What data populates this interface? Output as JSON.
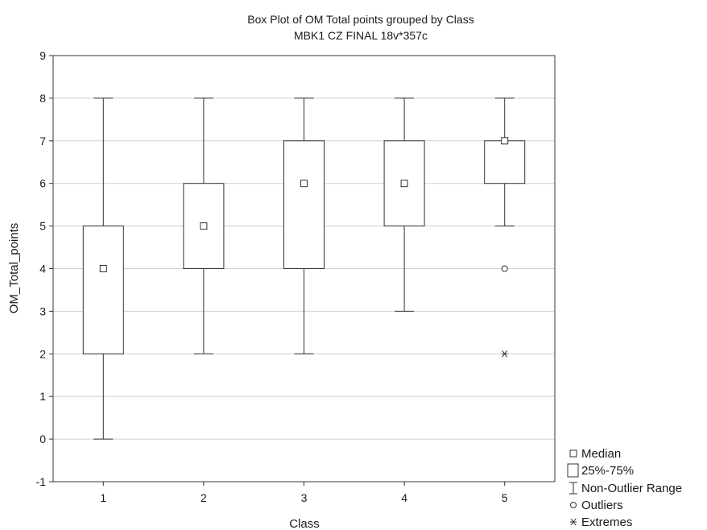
{
  "chart_data": {
    "type": "box",
    "title": "Box Plot of OM  Total  points grouped by  Class",
    "subtitle": "MBK1  CZ  FINAL 18v*357c",
    "xlabel": "Class",
    "ylabel": "OM_Total_points",
    "ylim": [
      -1,
      9
    ],
    "yticks": [
      -1,
      0,
      1,
      2,
      3,
      4,
      5,
      6,
      7,
      8,
      9
    ],
    "grid": "horizontal",
    "legend_position": "right-bottom",
    "categories": [
      "1",
      "2",
      "3",
      "4",
      "5"
    ],
    "boxes": [
      {
        "category": "1",
        "median": 4,
        "q1": 2,
        "q3": 5,
        "whisker_low": 0,
        "whisker_high": 8,
        "outliers": [],
        "extremes": []
      },
      {
        "category": "2",
        "median": 5,
        "q1": 4,
        "q3": 6,
        "whisker_low": 2,
        "whisker_high": 8,
        "outliers": [],
        "extremes": []
      },
      {
        "category": "3",
        "median": 6,
        "q1": 4,
        "q3": 7,
        "whisker_low": 2,
        "whisker_high": 8,
        "outliers": [],
        "extremes": []
      },
      {
        "category": "4",
        "median": 6,
        "q1": 5,
        "q3": 7,
        "whisker_low": 3,
        "whisker_high": 8,
        "outliers": [],
        "extremes": []
      },
      {
        "category": "5",
        "median": 7,
        "q1": 6,
        "q3": 7,
        "whisker_low": 5,
        "whisker_high": 8,
        "outliers": [
          4
        ],
        "extremes": [
          2
        ]
      }
    ],
    "legend": [
      {
        "key": "median",
        "label": "Median"
      },
      {
        "key": "box",
        "label": "25%-75%"
      },
      {
        "key": "range",
        "label": "Non-Outlier Range"
      },
      {
        "key": "outliers",
        "label": "Outliers"
      },
      {
        "key": "extremes",
        "label": "Extremes"
      }
    ]
  }
}
